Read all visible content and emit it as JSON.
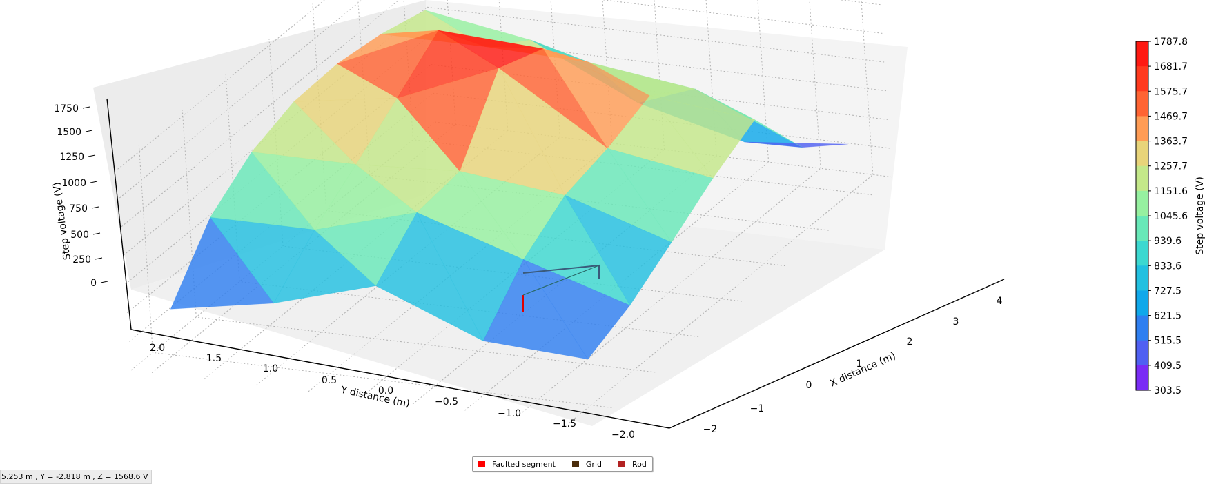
{
  "status_text": "5.253 m , Y = -2.818 m , Z = 1568.6 V",
  "legend": {
    "items": [
      {
        "label": "Faulted segment",
        "color": "#ff0000"
      },
      {
        "label": "Grid",
        "color": "#4a2c0a"
      },
      {
        "label": "Rod",
        "color": "#b22222"
      }
    ]
  },
  "chart_data": {
    "type": "surface3d",
    "title": "",
    "xlabel": "X distance (m)",
    "ylabel": "Y distance (m)",
    "zlabel": "Step voltage (V)",
    "xlim": [
      -2.5,
      4.5
    ],
    "ylim": [
      -2.2,
      2.2
    ],
    "zlim": [
      0,
      1800
    ],
    "x_ticks": [
      "−2",
      "−1",
      "0",
      "1",
      "2",
      "3",
      "4"
    ],
    "y_ticks": [
      "2.0",
      "1.5",
      "1.0",
      "0.5",
      "0.0",
      "−0.5",
      "−1.0",
      "−1.5",
      "−2.0"
    ],
    "z_ticks": [
      "0",
      "250",
      "500",
      "750",
      "1000",
      "1250",
      "1500",
      "1750"
    ],
    "grid": true,
    "colormap": "rainbow",
    "colorbar": {
      "label": "Step voltage (V)",
      "ticks": [
        "1787.8",
        "1681.7",
        "1575.7",
        "1469.7",
        "1363.7",
        "1257.7",
        "1151.6",
        "1045.6",
        "939.6",
        "833.6",
        "727.5",
        "621.5",
        "515.5",
        "409.5",
        "303.5"
      ],
      "colors": [
        "#ff1a12",
        "#ff3a1e",
        "#ff6433",
        "#ff9c55",
        "#e8d47a",
        "#c4e88a",
        "#96f0a0",
        "#68e8b8",
        "#3cd8d0",
        "#22c0e0",
        "#10a8ea",
        "#2f7ff0",
        "#5060f2",
        "#7a2cf5"
      ]
    },
    "surface_points": [
      {
        "x": -2,
        "y": 2,
        "z": 400
      },
      {
        "x": -1,
        "y": 2,
        "z": 890
      },
      {
        "x": 0,
        "y": 2,
        "z": 1150
      },
      {
        "x": 1,
        "y": 2,
        "z": 1280
      },
      {
        "x": 2,
        "y": 2,
        "z": 1300
      },
      {
        "x": 3,
        "y": 2,
        "z": 1250
      },
      {
        "x": 4,
        "y": 2,
        "z": 1150
      },
      {
        "x": -2,
        "y": 1,
        "z": 560
      },
      {
        "x": -1,
        "y": 1,
        "z": 890
      },
      {
        "x": 0,
        "y": 1,
        "z": 1150
      },
      {
        "x": 1,
        "y": 1,
        "z": 1420
      },
      {
        "x": 2,
        "y": 1,
        "z": 1700
      },
      {
        "x": 3,
        "y": 1,
        "z": 1250
      },
      {
        "x": 4,
        "y": 1,
        "z": 1000
      },
      {
        "x": -2,
        "y": 0,
        "z": 820
      },
      {
        "x": -1,
        "y": 0,
        "z": 1150
      },
      {
        "x": 0,
        "y": 0,
        "z": 1200
      },
      {
        "x": 1,
        "y": 0,
        "z": 1790
      },
      {
        "x": 2,
        "y": 0,
        "z": 1650
      },
      {
        "x": 3,
        "y": 0,
        "z": 1220
      },
      {
        "x": 4,
        "y": 0,
        "z": 560
      },
      {
        "x": -2,
        "y": -1,
        "z": 450
      },
      {
        "x": -1,
        "y": -1,
        "z": 850
      },
      {
        "x": 0,
        "y": -1,
        "z": 1100
      },
      {
        "x": 1,
        "y": -1,
        "z": 1200
      },
      {
        "x": 2,
        "y": -1,
        "z": 1350
      },
      {
        "x": 3,
        "y": -1,
        "z": 1100
      },
      {
        "x": 4,
        "y": -1,
        "z": 330
      },
      {
        "x": -2,
        "y": -2,
        "z": 400
      },
      {
        "x": -1,
        "y": -2,
        "z": 560
      },
      {
        "x": 0,
        "y": -2,
        "z": 800
      },
      {
        "x": 1,
        "y": -2,
        "z": 1050
      },
      {
        "x": 2,
        "y": -2,
        "z": 1250
      },
      {
        "x": 3,
        "y": -2,
        "z": 700
      },
      {
        "x": 4,
        "y": -2,
        "z": 420
      }
    ]
  }
}
